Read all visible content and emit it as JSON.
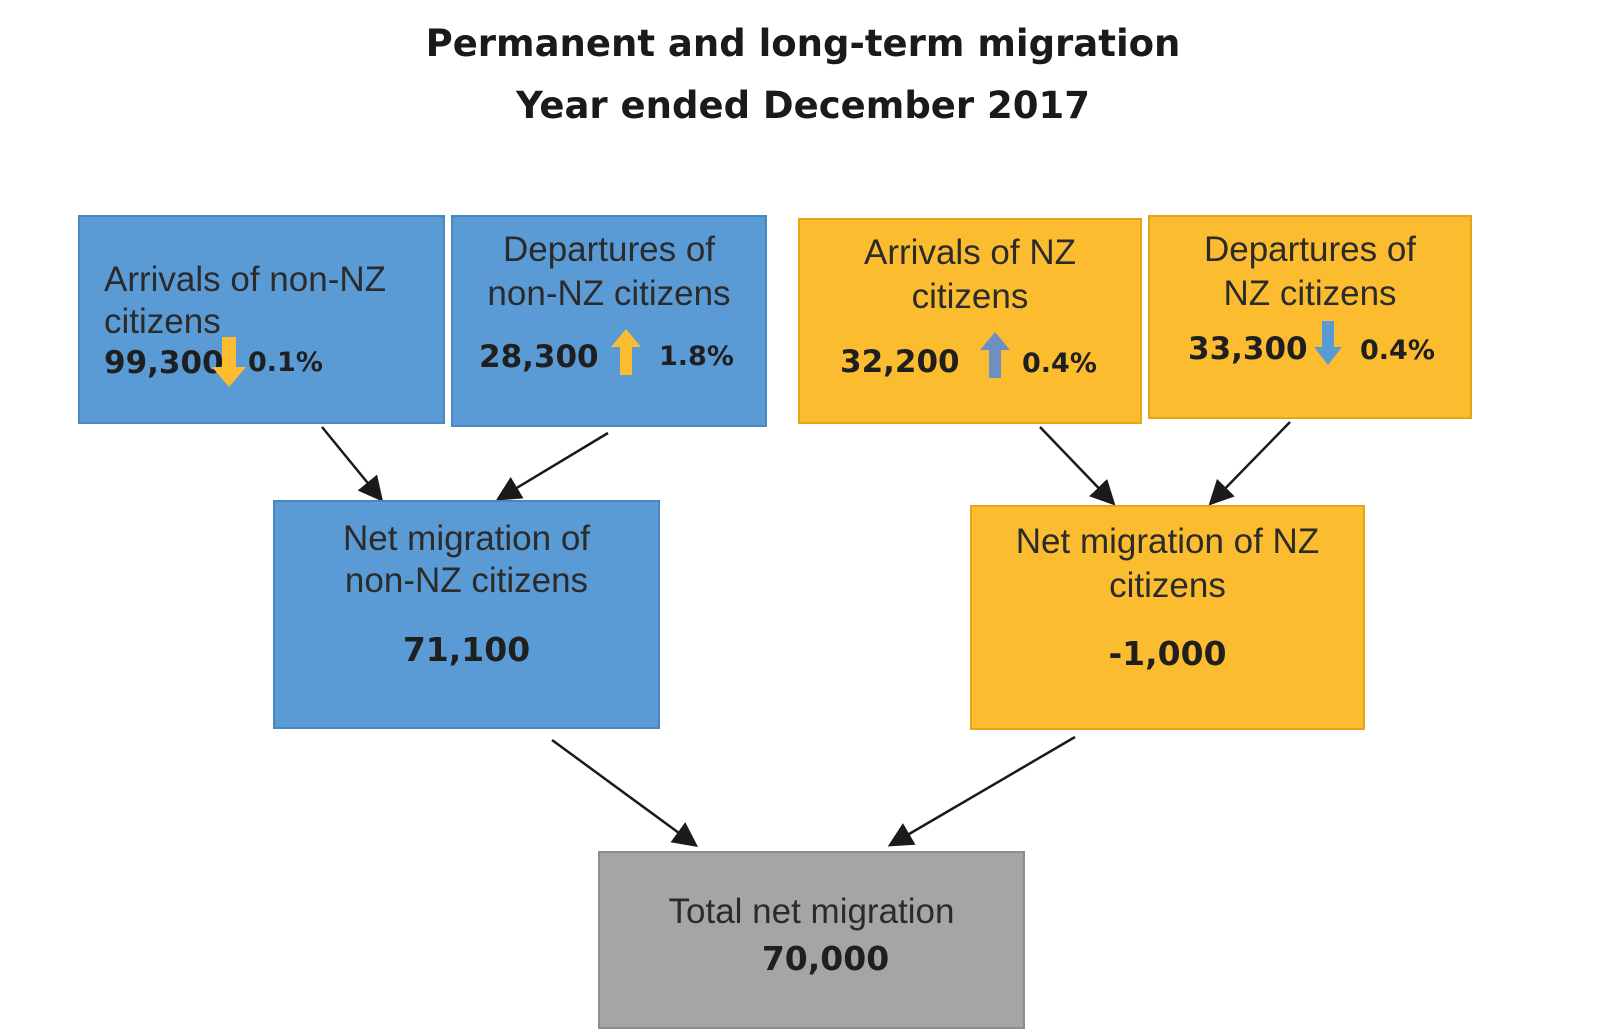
{
  "title": {
    "line1": "Permanent and long-term migration",
    "line2": "Year ended December 2017"
  },
  "colors": {
    "non_nz": "#5b9bd5",
    "nz": "#fbbd2f",
    "total": "#a5a5a5",
    "arrow_amber": "#fbbd2f",
    "arrow_steel": "#6f8fc0",
    "arrow_blue": "#5b9bd5"
  },
  "boxes": {
    "arrivals_non_nz": {
      "label_line1": "Arrivals of non-NZ",
      "label_line2": "citizens",
      "value": "99,300",
      "change": "0.1%",
      "direction": "down",
      "arrow_icon": "arrow-down-icon"
    },
    "departures_non_nz": {
      "label_line1": "Departures of",
      "label_line2": "non-NZ citizens",
      "value": "28,300",
      "change": "1.8%",
      "direction": "up",
      "arrow_icon": "arrow-up-icon"
    },
    "arrivals_nz": {
      "label_line1": "Arrivals of NZ",
      "label_line2": "citizens",
      "value": "32,200",
      "change": "0.4%",
      "direction": "up",
      "arrow_icon": "arrow-up-icon"
    },
    "departures_nz": {
      "label_line1": "Departures of",
      "label_line2": "NZ citizens",
      "value": "33,300",
      "change": "0.4%",
      "direction": "down",
      "arrow_icon": "arrow-down-icon"
    },
    "net_non_nz": {
      "label_line1": "Net migration of",
      "label_line2": "non-NZ citizens",
      "value": "71,100"
    },
    "net_nz": {
      "label_line1": "Net migration of NZ",
      "label_line2": "citizens",
      "value": "-1,000"
    },
    "total": {
      "label": "Total net migration",
      "value": "70,000"
    }
  }
}
